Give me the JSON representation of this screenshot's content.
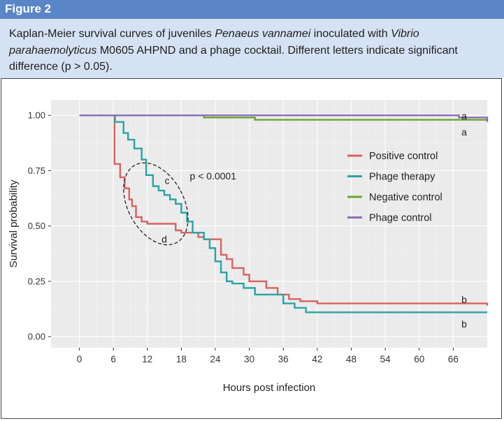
{
  "figure": {
    "label": "Figure 2",
    "caption_parts": [
      {
        "text": "Kaplan-Meier survival curves of juveniles ",
        "italic": false
      },
      {
        "text": "Penaeus vannamei",
        "italic": true
      },
      {
        "text": " inoculated with ",
        "italic": false
      },
      {
        "text": "Vibrio parahaemolyticus",
        "italic": true
      },
      {
        "text": " M0605 AHPND and a phage cocktail. Different letters indicate significant difference (p > 0.05).",
        "italic": false
      }
    ]
  },
  "chart_data": {
    "type": "line",
    "subtype": "kaplan-meier-step",
    "xlabel": "Hours post infection",
    "ylabel": "Survival probability",
    "xlim": [
      -5,
      72
    ],
    "ylim": [
      -0.05,
      1.07
    ],
    "xticks": [
      0,
      6,
      12,
      18,
      24,
      30,
      36,
      42,
      48,
      54,
      60,
      66
    ],
    "yticks": [
      0,
      0.25,
      0.5,
      0.75,
      1
    ],
    "ytick_labels": [
      "0.00",
      "0.25",
      "0.50",
      "0.75",
      "1.00"
    ],
    "grid": true,
    "background": "#ebebeb",
    "legend_position": "right",
    "annotation": "p < 0.0001",
    "series": [
      {
        "name": "Positive control",
        "color": "#d9625f",
        "x": [
          0,
          6.2,
          7.2,
          8,
          8.8,
          9.3,
          10,
          11,
          12,
          17,
          18,
          21,
          22,
          25,
          26,
          27,
          29,
          30,
          33,
          35,
          37,
          39,
          42,
          72
        ],
        "y": [
          1,
          0.78,
          0.72,
          0.67,
          0.62,
          0.59,
          0.54,
          0.52,
          0.51,
          0.48,
          0.47,
          0.45,
          0.44,
          0.37,
          0.35,
          0.31,
          0.28,
          0.25,
          0.22,
          0.19,
          0.17,
          0.16,
          0.15,
          0.14
        ],
        "end_label": "b"
      },
      {
        "name": "Phage therapy",
        "color": "#2aa3a3",
        "x": [
          0,
          6.3,
          7.8,
          8.6,
          9.7,
          11,
          11.8,
          13,
          14,
          15,
          16,
          17,
          18,
          19,
          20,
          22,
          23,
          24,
          25,
          26,
          27,
          29,
          31,
          36,
          38,
          40,
          72
        ],
        "y": [
          1,
          0.97,
          0.92,
          0.89,
          0.85,
          0.8,
          0.73,
          0.68,
          0.66,
          0.64,
          0.62,
          0.6,
          0.56,
          0.52,
          0.47,
          0.44,
          0.4,
          0.34,
          0.29,
          0.25,
          0.24,
          0.22,
          0.19,
          0.15,
          0.13,
          0.11,
          0.11
        ],
        "end_label": "b"
      },
      {
        "name": "Negative control",
        "color": "#6aa532",
        "x": [
          0,
          22,
          31,
          72
        ],
        "y": [
          1,
          0.99,
          0.98,
          0.98
        ],
        "end_label": "a"
      },
      {
        "name": "Phage control",
        "color": "#8e6ebb",
        "x": [
          0,
          60,
          67,
          72
        ],
        "y": [
          1,
          1,
          0.99,
          0.97
        ],
        "end_label": "a"
      }
    ],
    "ellipse_labels": [
      "c",
      "d"
    ]
  }
}
